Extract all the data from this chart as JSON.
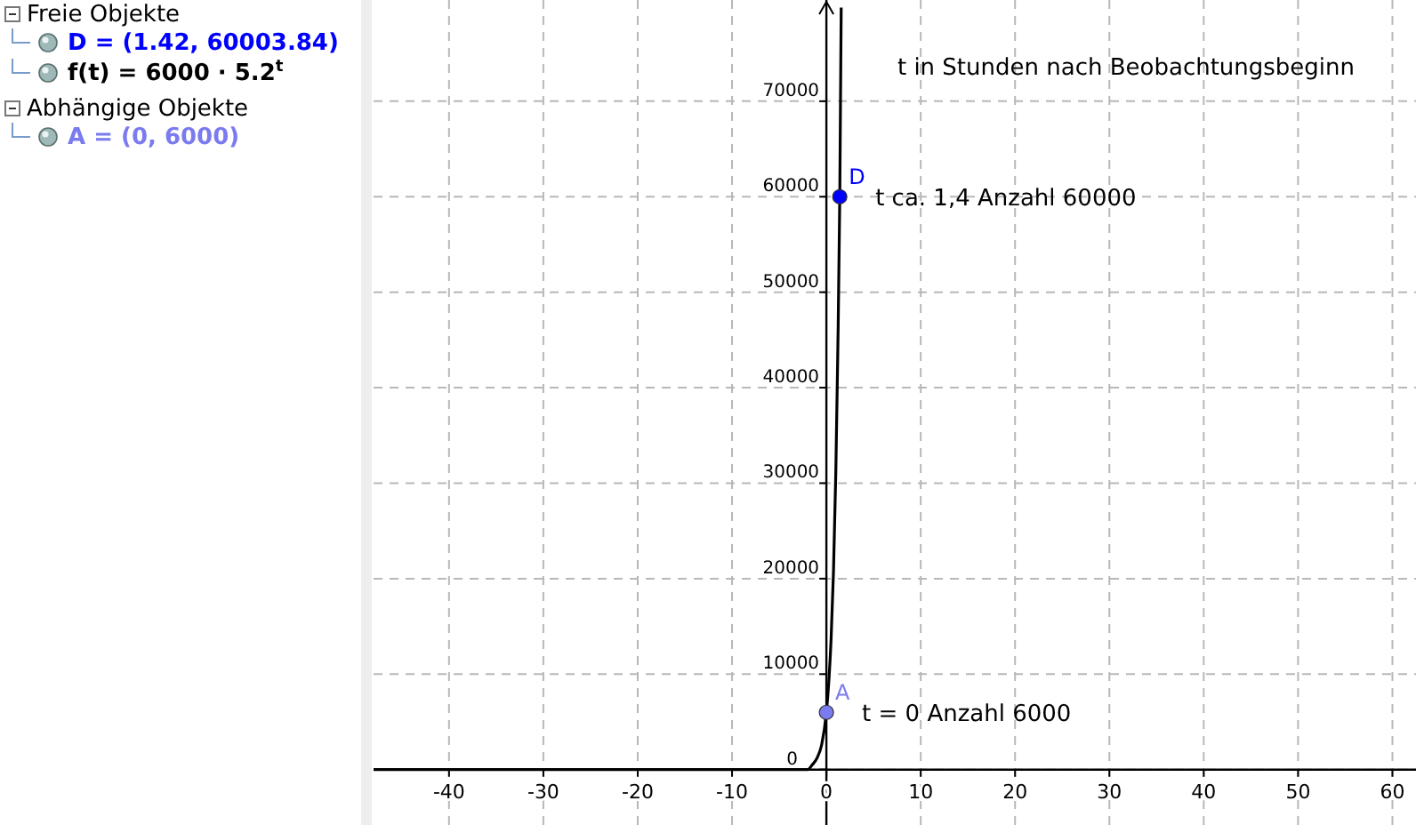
{
  "chart_data": [
    {
      "type": "other",
      "annotations": [
        "Freie Objekte",
        "D = (1.42, 60003.84)",
        "f(t) = 6000 · 5.2$^{t}$",
        "Abhängige Objekte",
        "A = (0, 6000)"
      ]
    },
    {
      "type": "line",
      "xlim": [
        -48,
        62.5
      ],
      "ylim": [
        -5800,
        80600
      ],
      "xticks": [
        -40,
        -30,
        -20,
        -10,
        0,
        10,
        20,
        30,
        40,
        50,
        60
      ],
      "yticks": [
        0,
        10000,
        20000,
        30000,
        40000,
        50000,
        60000,
        70000
      ],
      "grid": true,
      "legend": false,
      "line_style": "solid",
      "annotations": [
        "t in Stunden nach Beobachtungsbeginn",
        {
          "text": "t ca. 1,4 Anzahl 60000",
          "x": 1.42,
          "y": 60000
        },
        {
          "text": "t = 0 Anzahl 6000",
          "x": 0,
          "y": 6000
        }
      ],
      "series": [
        {
          "type": "line",
          "color": "#000000",
          "x": [
            -48,
            -20,
            -10,
            -5,
            -4,
            -3,
            -2.5,
            -2,
            -1.5,
            -1,
            -0.5,
            0,
            0.25,
            0.5,
            0.75,
            1,
            1.2,
            1.42,
            1.57
          ],
          "values": [
            0,
            0,
            0,
            0,
            0,
            0,
            0,
            0,
            500,
            1200,
            2600,
            6000,
            9100,
            13700,
            20700,
            31200,
            43200,
            60000,
            79800
          ]
        },
        {
          "type": "scatter",
          "name": "D",
          "color": "#0000ff",
          "marker": "circle",
          "x": [
            1.42
          ],
          "values": [
            60000
          ]
        },
        {
          "type": "scatter",
          "name": "A",
          "color": "#7b7bf0",
          "marker": "circle",
          "x": [
            0
          ],
          "values": [
            6000
          ]
        }
      ]
    }
  ]
}
